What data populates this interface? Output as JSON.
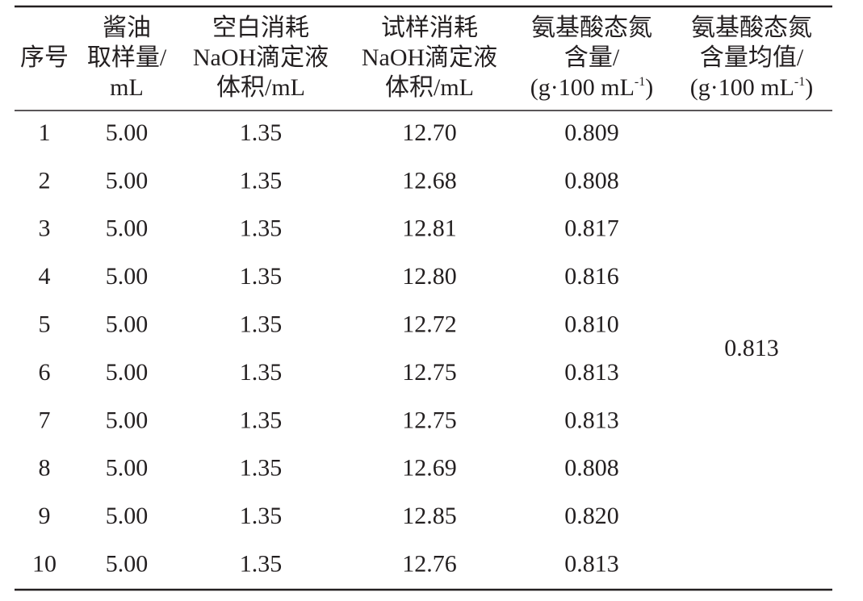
{
  "table": {
    "headers": [
      [
        "序号"
      ],
      [
        "酱油",
        "取样量/",
        "mL"
      ],
      [
        "空白消耗",
        "NaOH滴定液",
        "体积/mL"
      ],
      [
        "试样消耗",
        "NaOH滴定液",
        "体积/mL"
      ],
      [
        "氨基酸态氮",
        "含量/",
        [
          "(g·100 mL",
          "-1",
          ")"
        ]
      ],
      [
        "氨基酸态氮",
        "含量均值/",
        [
          "(g·100 mL",
          "-1",
          ")"
        ]
      ]
    ],
    "rows": [
      [
        "1",
        "5.00",
        "1.35",
        "12.70",
        "0.809"
      ],
      [
        "2",
        "5.00",
        "1.35",
        "12.68",
        "0.808"
      ],
      [
        "3",
        "5.00",
        "1.35",
        "12.81",
        "0.817"
      ],
      [
        "4",
        "5.00",
        "1.35",
        "12.80",
        "0.816"
      ],
      [
        "5",
        "5.00",
        "1.35",
        "12.72",
        "0.810"
      ],
      [
        "6",
        "5.00",
        "1.35",
        "12.75",
        "0.813"
      ],
      [
        "7",
        "5.00",
        "1.35",
        "12.75",
        "0.813"
      ],
      [
        "8",
        "5.00",
        "1.35",
        "12.69",
        "0.808"
      ],
      [
        "9",
        "5.00",
        "1.35",
        "12.85",
        "0.820"
      ],
      [
        "10",
        "5.00",
        "1.35",
        "12.76",
        "0.813"
      ]
    ],
    "mean": "0.813"
  }
}
